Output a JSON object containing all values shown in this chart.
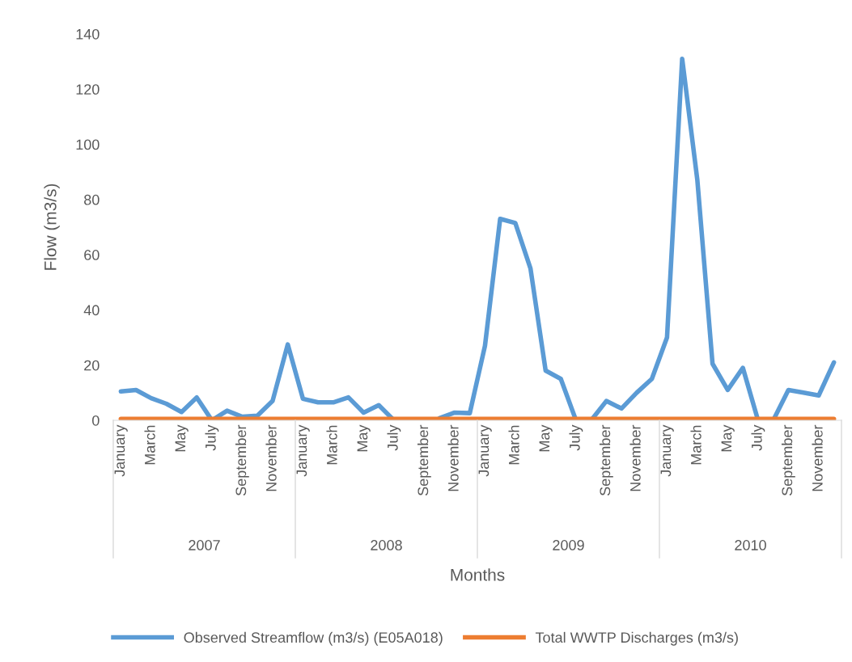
{
  "chart_data": {
    "type": "line",
    "xlabel": "Months",
    "ylabel": "Flow (m3/s)",
    "categories": [
      "January",
      null,
      "March",
      null,
      "May",
      null,
      "July",
      null,
      "September",
      null,
      "November",
      null,
      "January",
      null,
      "March",
      null,
      "May",
      null,
      "July",
      null,
      "September",
      null,
      "November",
      null,
      "January",
      null,
      "March",
      null,
      "May",
      null,
      "July",
      null,
      "September",
      null,
      "November",
      null,
      "January",
      null,
      "March",
      null,
      "May",
      null,
      "July",
      null,
      "September",
      null,
      "November",
      null
    ],
    "series": [
      {
        "name": "Observed Streamflow (m3/s) (E05A018)",
        "color": "#5b9bd5",
        "values": [
          10.5,
          11,
          8,
          6,
          3,
          8.3,
          0,
          3.5,
          1.3,
          1.7,
          7,
          27.5,
          7.8,
          6.5,
          6.5,
          8.3,
          2.8,
          5.5,
          0,
          null,
          null,
          0.8,
          2.8,
          2.6,
          27,
          73,
          71.5,
          55,
          18,
          15,
          0,
          0,
          7,
          4.3,
          10,
          15,
          30,
          131,
          87,
          20.5,
          11,
          19,
          0,
          0,
          11,
          10,
          9,
          21
        ]
      },
      {
        "name": "Total WWTP Discharges (m3/s)",
        "color": "#ed7d31",
        "values": [
          0.5,
          0.5,
          0.5,
          0.5,
          0.5,
          0.5,
          0.5,
          0.5,
          0.5,
          0.5,
          0.5,
          0.5,
          0.5,
          0.5,
          0.5,
          0.5,
          0.5,
          0.5,
          0.5,
          0.5,
          0.5,
          0.5,
          0.5,
          0.5,
          0.5,
          0.5,
          0.5,
          0.5,
          0.5,
          0.5,
          0.5,
          0.5,
          0.5,
          0.5,
          0.5,
          0.5,
          0.5,
          0.5,
          0.5,
          0.5,
          0.5,
          0.5,
          0.5,
          0.5,
          0.5,
          0.5,
          0.5,
          0.5
        ]
      }
    ],
    "annotations": [
      "2007",
      "2008",
      "2009",
      "2010"
    ],
    "ylim": [
      0,
      140
    ],
    "yticks": [
      0,
      20,
      40,
      60,
      80,
      100,
      120,
      140
    ],
    "grid": false,
    "legend": "bottom",
    "marker": "none",
    "line_style": "solid"
  }
}
